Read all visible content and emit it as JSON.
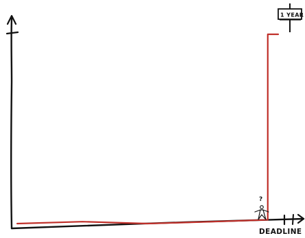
{
  "chart_data": {
    "type": "line",
    "title": "",
    "xlabel": "",
    "ylabel": "",
    "x_axis_marker_label": "DEADLINE",
    "annotations": {
      "sign_text": "1 YEAR",
      "stick_figure_question": "?"
    },
    "series": [
      {
        "color": "#c0302a",
        "points": [
          {
            "x": 0.0,
            "y": 0.0
          },
          {
            "x": 0.25,
            "y": 0.01
          },
          {
            "x": 0.5,
            "y": 0.0
          },
          {
            "x": 0.75,
            "y": 0.01
          },
          {
            "x": 0.96,
            "y": 0.02
          },
          {
            "x": 0.96,
            "y": 1.0
          },
          {
            "x": 1.0,
            "y": 1.0
          }
        ]
      }
    ],
    "xlim": [
      0,
      1
    ],
    "ylim": [
      0,
      1
    ],
    "grid": false
  },
  "colors": {
    "axis": "#111111",
    "series": "#c0302a",
    "background": "#ffffff"
  },
  "icons": {
    "stick_figure": "confused-stick-figure-icon",
    "signpost": "signpost-icon"
  }
}
